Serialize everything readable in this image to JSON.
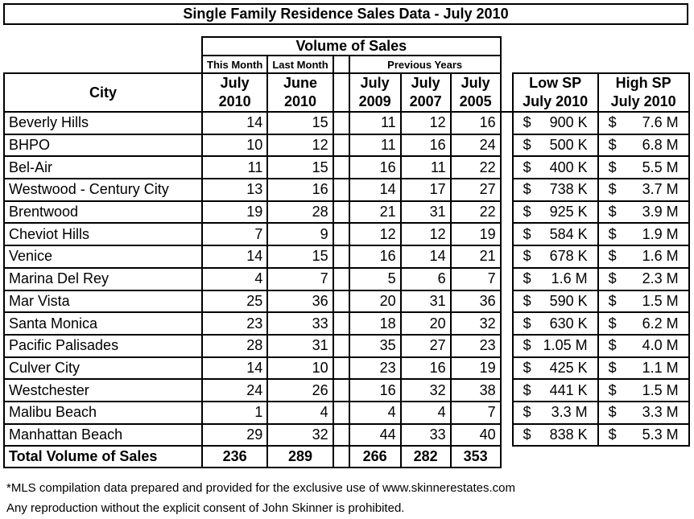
{
  "title": "Single Family Residence Sales Data - July 2010",
  "headers": {
    "volume_of_sales": "Volume of Sales",
    "this_month": "This Month",
    "last_month": "Last Month",
    "previous_years": "Previous Years",
    "city": "City",
    "cols": [
      [
        "July",
        "2010"
      ],
      [
        "June",
        "2010"
      ],
      [
        "July",
        "2009"
      ],
      [
        "July",
        "2007"
      ],
      [
        "July",
        "2005"
      ],
      [
        "Low SP",
        "July 2010"
      ],
      [
        "High SP",
        "July 2010"
      ]
    ]
  },
  "rows": [
    {
      "city": "Beverly Hills",
      "jul2010": "14",
      "jun2010": "15",
      "jul2009": "11",
      "jul2007": "12",
      "jul2005": "16",
      "low": "900 K",
      "high": "7.6 M"
    },
    {
      "city": "BHPO",
      "jul2010": "10",
      "jun2010": "12",
      "jul2009": "11",
      "jul2007": "16",
      "jul2005": "24",
      "low": "500 K",
      "high": "6.8 M"
    },
    {
      "city": "Bel-Air",
      "jul2010": "11",
      "jun2010": "15",
      "jul2009": "16",
      "jul2007": "11",
      "jul2005": "22",
      "low": "400 K",
      "high": "5.5 M"
    },
    {
      "city": "Westwood - Century City",
      "jul2010": "13",
      "jun2010": "16",
      "jul2009": "14",
      "jul2007": "17",
      "jul2005": "27",
      "low": "738 K",
      "high": "3.7 M"
    },
    {
      "city": "Brentwood",
      "jul2010": "19",
      "jun2010": "28",
      "jul2009": "21",
      "jul2007": "31",
      "jul2005": "22",
      "low": "925 K",
      "high": "3.9 M"
    },
    {
      "city": "Cheviot Hills",
      "jul2010": "7",
      "jun2010": "9",
      "jul2009": "12",
      "jul2007": "12",
      "jul2005": "19",
      "low": "584 K",
      "high": "1.9 M"
    },
    {
      "city": "Venice",
      "jul2010": "14",
      "jun2010": "15",
      "jul2009": "16",
      "jul2007": "14",
      "jul2005": "21",
      "low": "678 K",
      "high": "1.6 M"
    },
    {
      "city": "Marina Del Rey",
      "jul2010": "4",
      "jun2010": "7",
      "jul2009": "5",
      "jul2007": "6",
      "jul2005": "7",
      "low": "1.6 M",
      "high": "2.3 M"
    },
    {
      "city": "Mar Vista",
      "jul2010": "25",
      "jun2010": "36",
      "jul2009": "20",
      "jul2007": "31",
      "jul2005": "36",
      "low": "590 K",
      "high": "1.5 M"
    },
    {
      "city": "Santa Monica",
      "jul2010": "23",
      "jun2010": "33",
      "jul2009": "18",
      "jul2007": "20",
      "jul2005": "32",
      "low": "630 K",
      "high": "6.2 M"
    },
    {
      "city": "Pacific Palisades",
      "jul2010": "28",
      "jun2010": "31",
      "jul2009": "35",
      "jul2007": "27",
      "jul2005": "23",
      "low": "1.05 M",
      "high": "4.0 M"
    },
    {
      "city": "Culver City",
      "jul2010": "14",
      "jun2010": "10",
      "jul2009": "23",
      "jul2007": "16",
      "jul2005": "19",
      "low": "425 K",
      "high": "1.1 M"
    },
    {
      "city": "Westchester",
      "jul2010": "24",
      "jun2010": "26",
      "jul2009": "16",
      "jul2007": "32",
      "jul2005": "38",
      "low": "441 K",
      "high": "1.5 M"
    },
    {
      "city": "Malibu Beach",
      "jul2010": "1",
      "jun2010": "4",
      "jul2009": "4",
      "jul2007": "4",
      "jul2005": "7",
      "low": "3.3 M",
      "high": "3.3 M"
    },
    {
      "city": "Manhattan Beach",
      "jul2010": "29",
      "jun2010": "32",
      "jul2009": "44",
      "jul2007": "33",
      "jul2005": "40",
      "low": "838 K",
      "high": "5.3 M"
    }
  ],
  "currency_symbol": "$",
  "total": {
    "label": "Total Volume of Sales",
    "jul2010": "236",
    "jun2010": "289",
    "jul2009": "266",
    "jul2007": "282",
    "jul2005": "353"
  },
  "footnote_1": "*MLS compilation data prepared and provided for the exclusive use of www.skinnerestates.com",
  "footnote_2": "Any reproduction without the explicit consent of John Skinner is prohibited."
}
